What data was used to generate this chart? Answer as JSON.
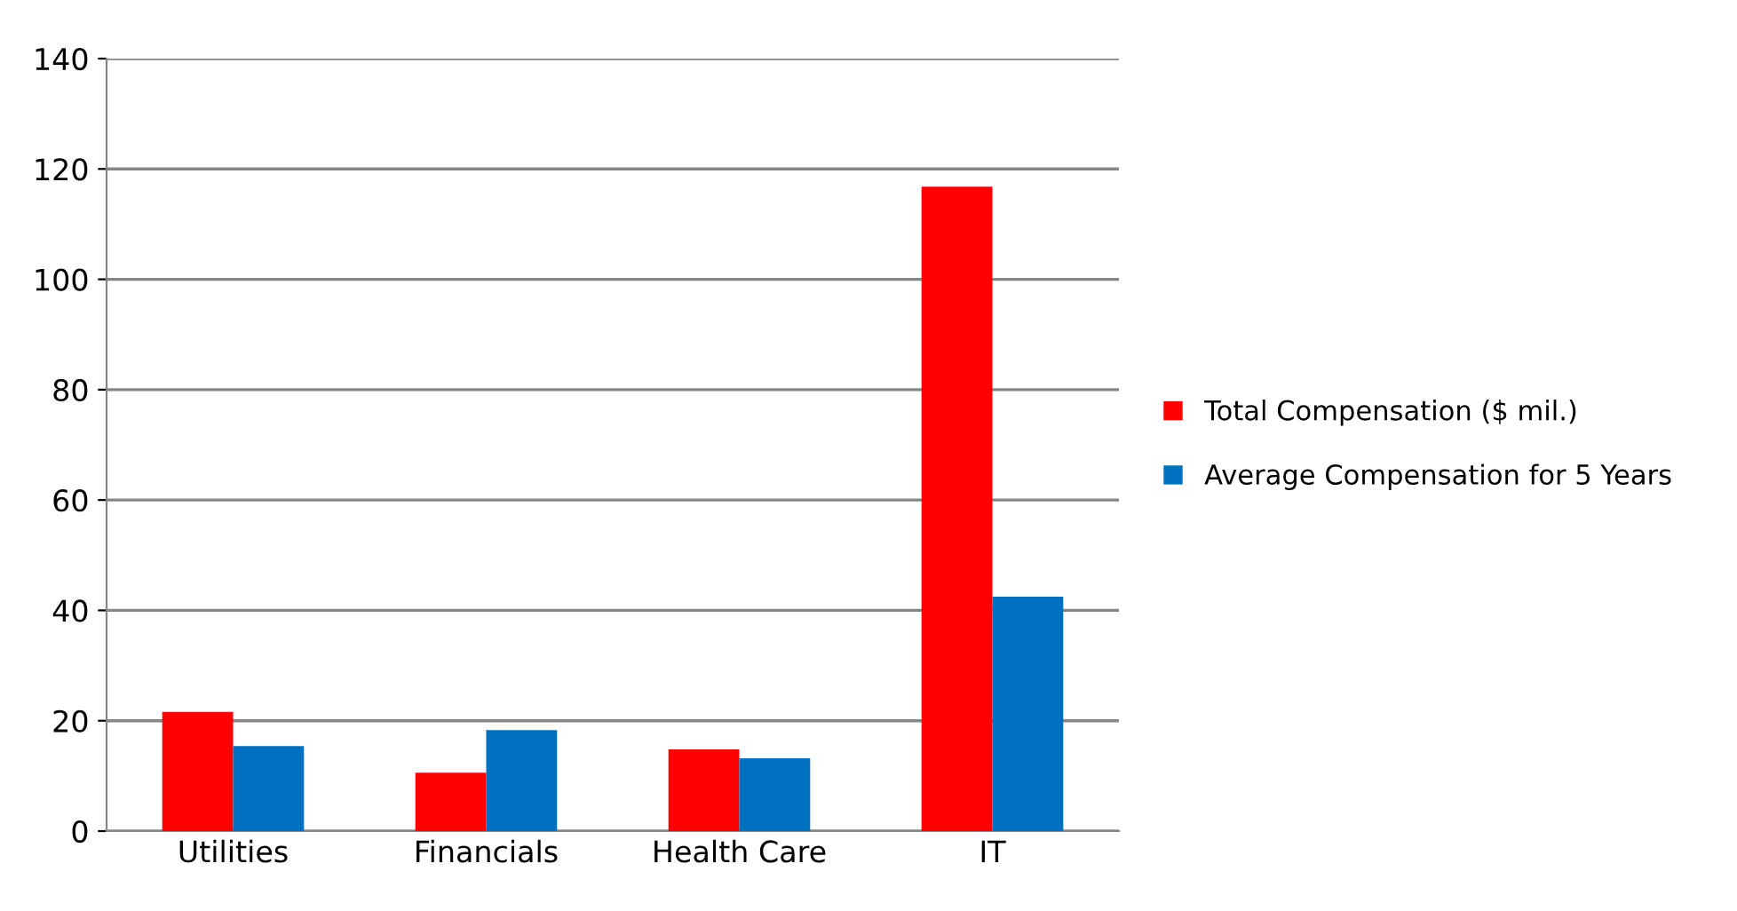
{
  "chart_data": {
    "type": "bar",
    "categories": [
      "Utilities",
      "Financials",
      "Health Care",
      "IT"
    ],
    "series": [
      {
        "name": "Total Compensation ($ mil.)",
        "color": "#ff0000",
        "values": [
          21.6,
          10.6,
          14.8,
          116.8
        ]
      },
      {
        "name": "Average Compensation for 5 Years",
        "color": "#0070c0",
        "values": [
          15.4,
          18.3,
          13.2,
          42.5
        ]
      }
    ],
    "ylim": [
      0,
      140
    ],
    "yticks": [
      0,
      20,
      40,
      60,
      80,
      100,
      120,
      140
    ],
    "grid": "y",
    "legend": "right"
  }
}
